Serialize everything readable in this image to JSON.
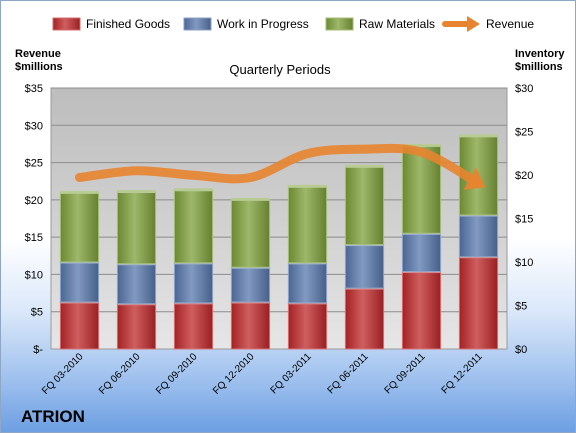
{
  "brand": "ATRION",
  "colors": {
    "finished_goods": "#c0282a",
    "work_in_progress": "#5878ad",
    "raw_materials": "#7ea03a",
    "revenue": "#e8842f",
    "plot_background": "#c8c8c8"
  },
  "chart_data": {
    "type": "bar",
    "stacked": true,
    "title": "Quarterly Periods",
    "ylabel": "Revenue $millions",
    "ylabel_lines": [
      "Revenue",
      "$millions"
    ],
    "y2label": "Inventory $millions",
    "y2label_lines": [
      "Inventory",
      "$millions"
    ],
    "categories": [
      "FQ 03-2010",
      "FQ 06-2010",
      "FQ 09-2010",
      "FQ 12-2010",
      "FQ 03-2011",
      "FQ 06-2011",
      "FQ 09-2011",
      "FQ 12-2011"
    ],
    "ylim": [
      0,
      35
    ],
    "y2lim": [
      0,
      30
    ],
    "y_ticks": [
      0,
      5,
      10,
      15,
      20,
      25,
      30,
      35
    ],
    "y_tick_labels": [
      "$-",
      "$5",
      "$10",
      "$15",
      "$20",
      "$25",
      "$30",
      "$35"
    ],
    "y2_ticks": [
      0,
      5,
      10,
      15,
      20,
      25,
      30
    ],
    "y2_tick_labels": [
      "$0",
      "$5",
      "$10",
      "$15",
      "$20",
      "$25",
      "$30"
    ],
    "grid": true,
    "legend_position": "top",
    "series": [
      {
        "name": "Finished Goods",
        "axis": "secondary",
        "kind": "bar",
        "values": [
          5.4,
          5.2,
          5.3,
          5.4,
          5.3,
          7.0,
          8.9,
          10.6
        ]
      },
      {
        "name": "Work in Progress",
        "axis": "secondary",
        "kind": "bar",
        "values": [
          4.6,
          4.6,
          4.6,
          4.0,
          4.6,
          5.0,
          4.4,
          4.8
        ]
      },
      {
        "name": "Raw Materials",
        "axis": "secondary",
        "kind": "bar",
        "values": [
          8.0,
          8.3,
          8.4,
          7.8,
          8.8,
          9.0,
          10.1,
          9.1
        ]
      },
      {
        "name": "Revenue",
        "axis": "primary",
        "kind": "line",
        "values": [
          23.0,
          23.9,
          23.3,
          23.0,
          26.2,
          26.8,
          26.4,
          22.2
        ]
      }
    ]
  }
}
